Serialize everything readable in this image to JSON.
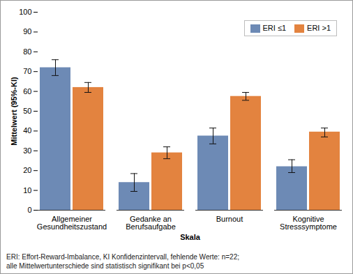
{
  "chart_data": {
    "type": "bar",
    "x_label": "Skala",
    "y_label": "Mittelwert (95%-KI)",
    "categories": [
      "Allgemeiner Gesundheitszustand",
      "Gedanke an Berufsaufgabe",
      "Burnout",
      "Kognitive Stresssymptome"
    ],
    "series": [
      {
        "name": "ERI ≤1",
        "color": "#6d8ab5",
        "values": [
          72,
          14,
          37.5,
          22
        ],
        "ci_low": [
          68,
          9.5,
          33.5,
          19
        ],
        "ci_high": [
          76,
          18.5,
          41.5,
          25.5
        ]
      },
      {
        "name": "ERI >1",
        "color": "#e3833f",
        "values": [
          62,
          29,
          57.5,
          39.5
        ],
        "ci_low": [
          59.5,
          26,
          55.5,
          37
        ],
        "ci_high": [
          64.5,
          32,
          59.5,
          41.5
        ]
      }
    ],
    "ylim": [
      0,
      100
    ],
    "yticks": [
      0,
      10,
      20,
      30,
      40,
      50,
      60,
      70,
      80,
      90,
      100
    ],
    "grid": false,
    "legend": "top-right",
    "annotations": [
      "ERI: Effort-Reward-Imbalance, KI Konfidenzintervall, fehlende Werte: n=22;",
      "alle Mittelwertunterschiede sind statistisch signifikant bei p<0,05"
    ]
  }
}
